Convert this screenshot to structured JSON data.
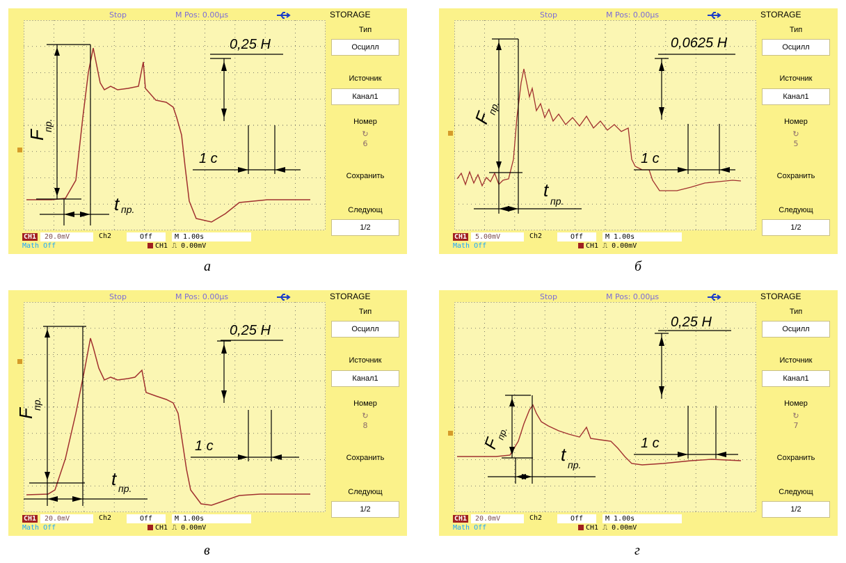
{
  "panels": [
    {
      "id": "a",
      "caption": "а",
      "status": "Stop",
      "mpos": "M Pos: 0.00µs",
      "menu": {
        "title": "STORAGE",
        "type_label": "Тип",
        "type_value": "Осцилл",
        "source_label": "Источник",
        "source_value": "Канал1",
        "number_label": "Номер",
        "number_value": "6",
        "save_label": "Сохранить",
        "next_label": "Следующ",
        "page_value": "1/2"
      },
      "bottom": {
        "ch1_tag": "CH1",
        "ch1_value": "20.0mV",
        "ch2_label": "Ch2",
        "ch2_value": "Off",
        "time_value": "M 1.00s",
        "math_text": "Math Off",
        "trig_text": "CH1  ⎍  0.00mV"
      },
      "annotations": {
        "force_scale": "0,25 Н",
        "time_scale": "1 с",
        "force_label": "F",
        "force_sub": "пр.",
        "time_label": "t",
        "time_sub": "пр."
      }
    },
    {
      "id": "b",
      "caption": "б",
      "status": "Stop",
      "mpos": "M Pos: 0.00µs",
      "menu": {
        "title": "STORAGE",
        "type_label": "Тип",
        "type_value": "Осцилл",
        "source_label": "Источник",
        "source_value": "Канал1",
        "number_label": "Номер",
        "number_value": "5",
        "save_label": "Сохранить",
        "next_label": "Следующ",
        "page_value": "1/2"
      },
      "bottom": {
        "ch1_tag": "CH1",
        "ch1_value": "5.00mV",
        "ch2_label": "Ch2",
        "ch2_value": "Off",
        "time_value": "M 1.00s",
        "math_text": "Math Off",
        "trig_text": "CH1  ⎍  0.00mV"
      },
      "annotations": {
        "force_scale": "0,0625 Н",
        "time_scale": "1 с",
        "force_label": "F",
        "force_sub": "пр.",
        "time_label": "t",
        "time_sub": "пр."
      }
    },
    {
      "id": "v",
      "caption": "в",
      "status": "Stop",
      "mpos": "M Pos: 0.00µs",
      "menu": {
        "title": "STORAGE",
        "type_label": "Тип",
        "type_value": "Осцилл",
        "source_label": "Источник",
        "source_value": "Канал1",
        "number_label": "Номер",
        "number_value": "8",
        "save_label": "Сохранить",
        "next_label": "Следующ",
        "page_value": "1/2"
      },
      "bottom": {
        "ch1_tag": "CH1",
        "ch1_value": "20.0mV",
        "ch2_label": "Ch2",
        "ch2_value": "Off",
        "time_value": "M 1.00s",
        "math_text": "Math Off",
        "trig_text": "CH1  ⎍  0.00mV"
      },
      "annotations": {
        "force_scale": "0,25 Н",
        "time_scale": "1 с",
        "force_label": "F",
        "force_sub": "пр.",
        "time_label": "t",
        "time_sub": "пр."
      }
    },
    {
      "id": "g",
      "caption": "г",
      "status": "Stop",
      "mpos": "M Pos: 0.00µs",
      "menu": {
        "title": "STORAGE",
        "type_label": "Тип",
        "type_value": "Осцилл",
        "source_label": "Источник",
        "source_value": "Канал1",
        "number_label": "Номер",
        "number_value": "7",
        "save_label": "Сохранить",
        "next_label": "Следующ",
        "page_value": "1/2"
      },
      "bottom": {
        "ch1_tag": "CH1",
        "ch1_value": "20.0mV",
        "ch2_label": "Ch2",
        "ch2_value": "Off",
        "time_value": "M 1.00s",
        "math_text": "Math Off",
        "trig_text": "CH1  ⎍  0.00mV"
      },
      "annotations": {
        "force_scale": "0,25 Н",
        "time_scale": "1 с",
        "force_label": "F",
        "force_sub": "пр.",
        "time_label": "t",
        "time_sub": "пр."
      }
    }
  ],
  "colors": {
    "bezel": "#fbf28a",
    "screen": "#fbf6b3",
    "trace": "#a0302f",
    "grid": "#555555",
    "usb_icon": "#1a3cc8"
  }
}
